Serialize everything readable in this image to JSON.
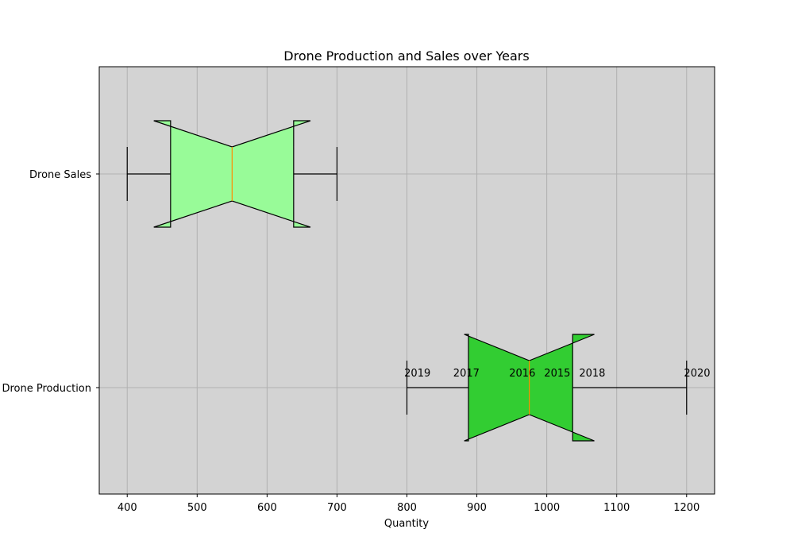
{
  "chart_data": {
    "type": "boxplot",
    "orientation": "horizontal",
    "notched": true,
    "title": "Drone Production and Sales over Years",
    "xlabel": "Quantity",
    "ylabel": "",
    "xlim": [
      360,
      1240
    ],
    "xticks": [
      400,
      500,
      600,
      700,
      800,
      900,
      1000,
      1100,
      1200
    ],
    "grid": true,
    "background": "#d3d3d3",
    "series": [
      {
        "name": "Drone Sales",
        "color": "#98fb98",
        "whisker_low": 400,
        "q1": 462,
        "median": 550,
        "q3": 638,
        "whisker_high": 700,
        "notch_low": 438,
        "notch_high": 662
      },
      {
        "name": "Drone Production",
        "color": "#32cd32",
        "whisker_low": 800,
        "q1": 888,
        "median": 975,
        "q3": 1037,
        "whisker_high": 1200,
        "notch_low": 882,
        "notch_high": 1068
      }
    ],
    "annotations": [
      {
        "text": "2019",
        "x": 815
      },
      {
        "text": "2017",
        "x": 885
      },
      {
        "text": "2016",
        "x": 965
      },
      {
        "text": "2015",
        "x": 1015
      },
      {
        "text": "2018",
        "x": 1065
      },
      {
        "text": "2020",
        "x": 1215
      }
    ],
    "median_color": "#ff8c00"
  }
}
